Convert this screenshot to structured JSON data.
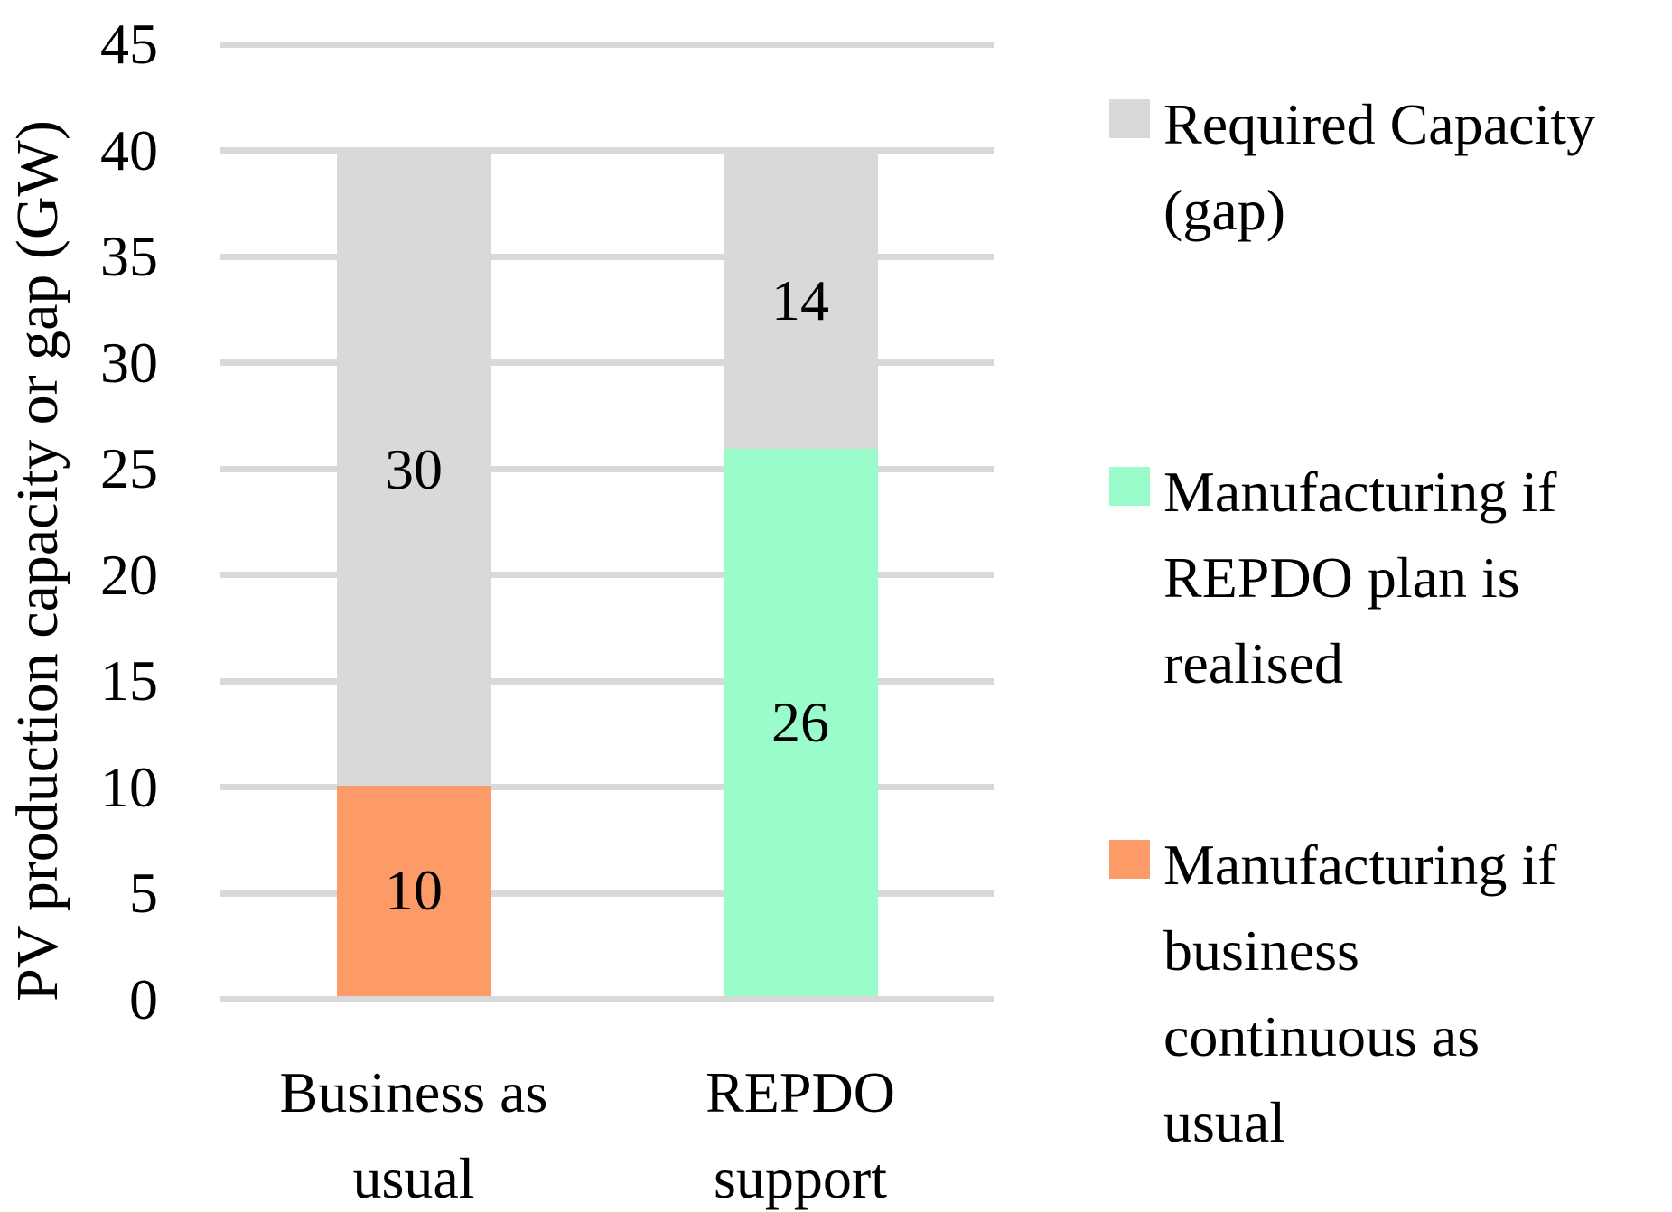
{
  "chart_data": {
    "type": "bar",
    "stacked": true,
    "title": "",
    "xlabel": "",
    "ylabel": "PV production capacity or gap (GW)",
    "ylim": [
      0,
      45
    ],
    "yticks": [
      0,
      5,
      10,
      15,
      20,
      25,
      30,
      35,
      40,
      45
    ],
    "grid": true,
    "legend_position": "right",
    "categories": [
      "Business as usual",
      "REPDO support"
    ],
    "category_label_lines": [
      "Business as\nusual",
      "REPDO\nsupport"
    ],
    "series": [
      {
        "name": "Manufacturing if business continuous as usual",
        "legend_lines": "Manufacturing if\nbusiness\ncontinuous as\nusual",
        "color": "#FC9B68",
        "values": [
          10,
          0
        ]
      },
      {
        "name": "Manufacturing if REPDO plan is realised",
        "legend_lines": "Manufacturing if\nREPDO plan is\nrealised",
        "color": "#9AFCCB",
        "values": [
          0,
          26
        ]
      },
      {
        "name": "Required Capacity (gap)",
        "legend_lines": "Required Capacity\n(gap)",
        "color": "#D9D9D9",
        "values": [
          30,
          14
        ]
      }
    ],
    "segment_value_labels": {
      "Business as usual": [
        10,
        30
      ],
      "REPDO support": [
        26,
        14
      ]
    },
    "colors": {
      "grid": "#D9D9D9",
      "text": "#000000",
      "background": "#FFFFFF"
    }
  }
}
